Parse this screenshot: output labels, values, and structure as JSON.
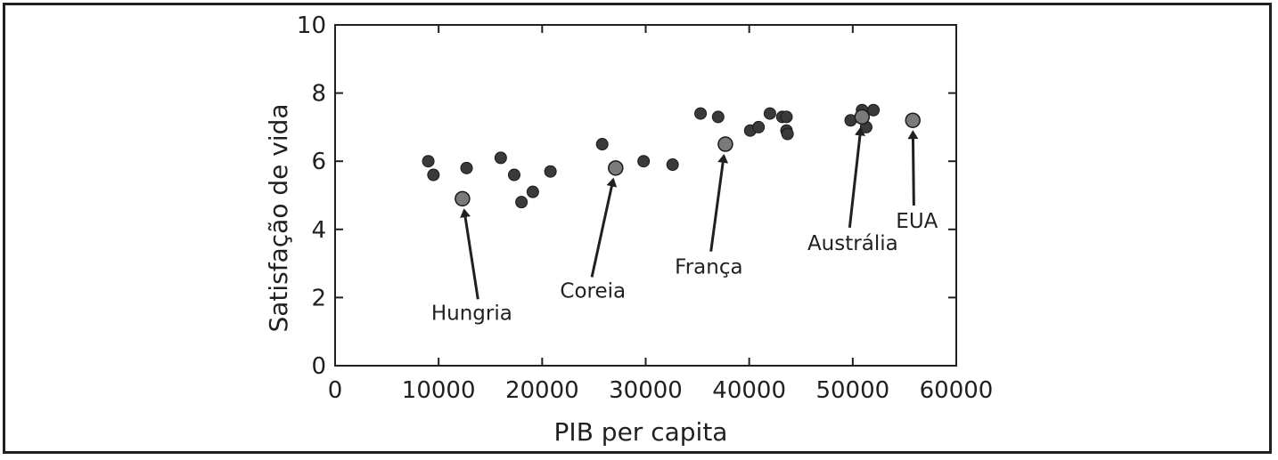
{
  "chart_data": {
    "type": "scatter",
    "xlabel": "PIB per capita",
    "ylabel": "Satisfação de vida",
    "xlim": [
      0,
      60000
    ],
    "ylim": [
      0,
      10
    ],
    "xticks": [
      0,
      10000,
      20000,
      30000,
      40000,
      50000,
      60000
    ],
    "yticks": [
      0,
      2,
      4,
      6,
      8,
      10
    ],
    "grid": false,
    "colors": {
      "point": "#3a3a3a",
      "highlight": "#7a7a7a",
      "edge": "#1a1a1a",
      "ink": "#231f20"
    },
    "points": [
      {
        "x": 9000,
        "y": 6.0
      },
      {
        "x": 9500,
        "y": 5.6
      },
      {
        "x": 12700,
        "y": 5.8
      },
      {
        "x": 16000,
        "y": 6.1
      },
      {
        "x": 17300,
        "y": 5.6
      },
      {
        "x": 18000,
        "y": 4.8
      },
      {
        "x": 19100,
        "y": 5.1
      },
      {
        "x": 20800,
        "y": 5.7
      },
      {
        "x": 25800,
        "y": 6.5
      },
      {
        "x": 29800,
        "y": 6.0
      },
      {
        "x": 32600,
        "y": 5.9
      },
      {
        "x": 35300,
        "y": 7.4
      },
      {
        "x": 37000,
        "y": 7.3
      },
      {
        "x": 40100,
        "y": 6.9
      },
      {
        "x": 40900,
        "y": 7.0
      },
      {
        "x": 42000,
        "y": 7.4
      },
      {
        "x": 43200,
        "y": 7.3
      },
      {
        "x": 43600,
        "y": 7.3
      },
      {
        "x": 43600,
        "y": 6.9
      },
      {
        "x": 43700,
        "y": 6.8
      },
      {
        "x": 49800,
        "y": 7.2
      },
      {
        "x": 50900,
        "y": 7.5
      },
      {
        "x": 51300,
        "y": 7.0
      },
      {
        "x": 52000,
        "y": 7.5
      }
    ],
    "annotations": [
      {
        "label": "Hungria",
        "x": 12300,
        "y": 4.9,
        "text_x": 10500,
        "text_y": 1.5
      },
      {
        "label": "Coreia",
        "x": 27100,
        "y": 5.8,
        "text_x": 24800,
        "text_y": 2.1
      },
      {
        "label": "França",
        "x": 37700,
        "y": 6.5,
        "text_x": 36300,
        "text_y": 2.8
      },
      {
        "label": "Austrália",
        "x": 50900,
        "y": 7.3,
        "text_x": 49700,
        "text_y": 3.5
      },
      {
        "label": "EUA",
        "x": 55800,
        "y": 7.2,
        "text_x": 56200,
        "text_y": 4.2
      }
    ]
  }
}
